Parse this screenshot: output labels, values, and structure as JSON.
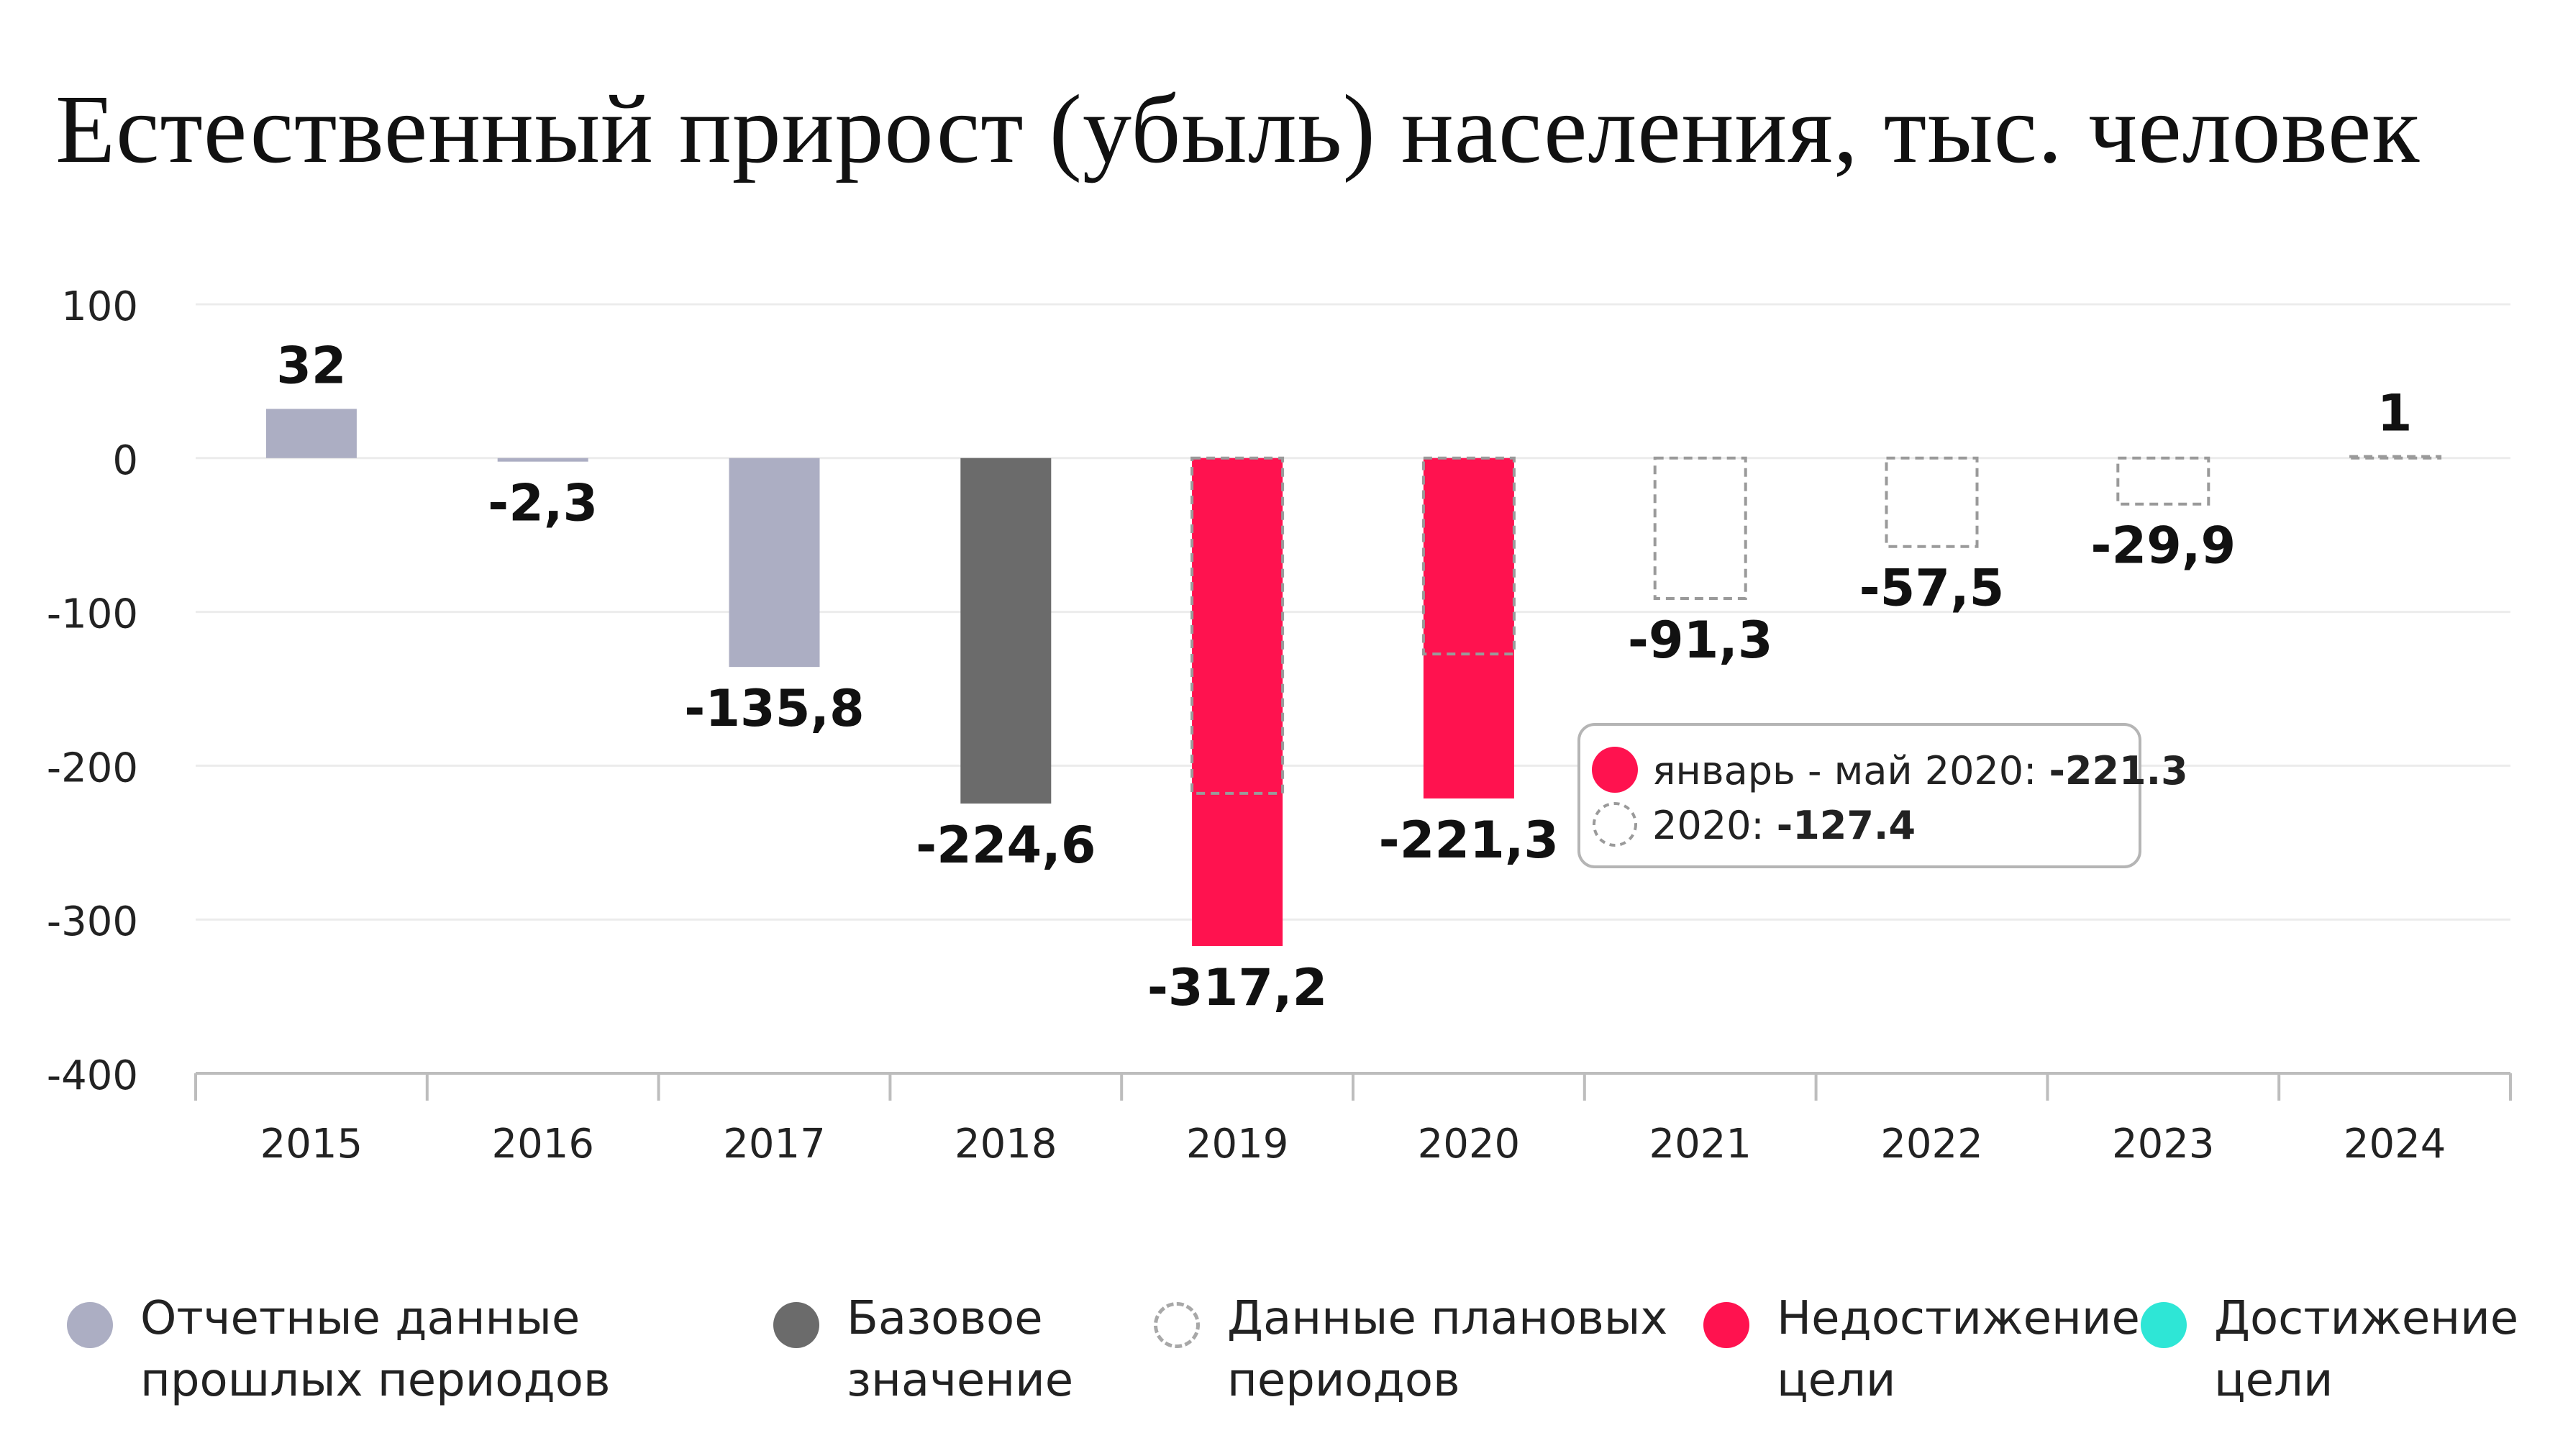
{
  "chart_data": {
    "type": "bar",
    "title": "Естественный прирост (убыль) населения, тыс. человек",
    "categories": [
      "2015",
      "2016",
      "2017",
      "2018",
      "2019",
      "2020",
      "2021",
      "2022",
      "2023",
      "2024"
    ],
    "values": [
      32,
      -2.3,
      -135.8,
      -224.6,
      -317.2,
      -221.3,
      -91.3,
      -57.5,
      -29.9,
      1
    ],
    "value_labels": [
      "32",
      "-2,3",
      "-135,8",
      "-224,6",
      "-317,2",
      "-221,3",
      "-91,3",
      "-57,5",
      "-29,9",
      "1"
    ],
    "bar_kinds": [
      "reported",
      "reported",
      "reported",
      "base",
      "miss",
      "miss",
      "plan",
      "plan",
      "plan",
      "plan"
    ],
    "plan_overlay": [
      {
        "category": "2019",
        "value": -218
      },
      {
        "category": "2020",
        "value": -127.4
      }
    ],
    "ylim": [
      -400,
      100
    ],
    "yticks": [
      100,
      0,
      -100,
      -200,
      -300,
      -400
    ],
    "grid": true,
    "xlabel": "",
    "ylabel": "",
    "tooltip": {
      "row1_label": "январь - май 2020:",
      "row1_value": "-221.3",
      "row2_label": "2020:",
      "row2_value": "-127.4"
    },
    "legend": [
      {
        "kind": "reported",
        "label": "Отчетные данные\nпрошлых периодов"
      },
      {
        "kind": "base",
        "label": "Базовое\nзначение"
      },
      {
        "kind": "plan",
        "label": "Данные плановых\nпериодов"
      },
      {
        "kind": "miss",
        "label": "Недостижение\nцели"
      },
      {
        "kind": "hit",
        "label": "Достижение\nцели"
      }
    ],
    "legend_position": "bottom"
  },
  "colors": {
    "reported": "#acaec3",
    "base": "#6b6b6b",
    "miss": "#ff124f",
    "hit": "#2ee6d6",
    "plan_stroke": "#9a9a9a",
    "grid": "#ececec",
    "axis": "#bdbdbd",
    "text": "#111111"
  }
}
